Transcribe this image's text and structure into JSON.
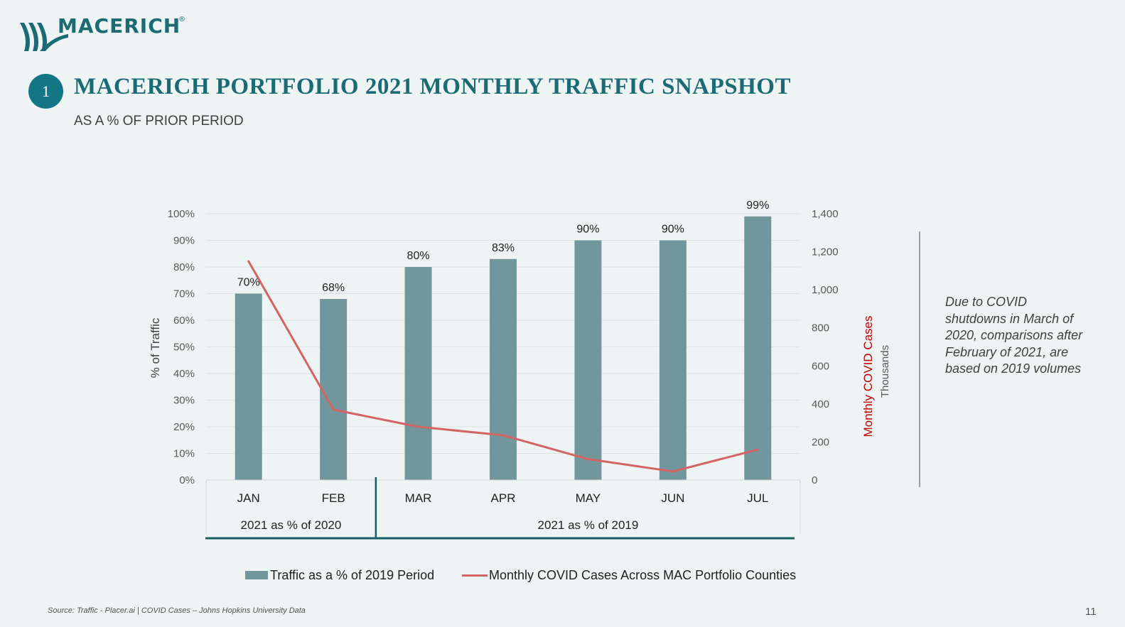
{
  "brand": {
    "name": "MACERICH",
    "registered": "®"
  },
  "header": {
    "section_number": "1",
    "title": "MACERICH PORTFOLIO 2021 MONTHLY TRAFFIC SNAPSHOT",
    "subtitle": "AS A % OF PRIOR PERIOD"
  },
  "chart_data": {
    "type": "bar",
    "categories": [
      "JAN",
      "FEB",
      "MAR",
      "APR",
      "MAY",
      "JUN",
      "JUL"
    ],
    "series": [
      {
        "name": "Traffic as a % of 2019 Period",
        "type": "bar",
        "axis": "left",
        "color": "#71979c",
        "values": [
          70,
          68,
          80,
          83,
          90,
          90,
          99
        ],
        "labels": [
          "70%",
          "68%",
          "80%",
          "83%",
          "90%",
          "90%",
          "99%"
        ]
      },
      {
        "name": "Monthly COVID Cases Across MAC Portfolio Counties",
        "type": "line",
        "axis": "right",
        "color": "#d46464",
        "values": [
          1150,
          370,
          280,
          235,
          110,
          45,
          160
        ]
      }
    ],
    "ylabel": "% of Traffic",
    "ylim": [
      0,
      100
    ],
    "yticks": [
      "0%",
      "10%",
      "20%",
      "30%",
      "40%",
      "50%",
      "60%",
      "70%",
      "80%",
      "90%",
      "100%"
    ],
    "y2label": "Monthly COVID Cases",
    "y2unit": "Thousands",
    "y2lim": [
      0,
      1400
    ],
    "y2ticks": [
      "0",
      "200",
      "400",
      "600",
      "800",
      "1,000",
      "1,200",
      "1,400"
    ],
    "y2label_color": "#c00000",
    "groups": [
      {
        "label": "2021 as % of 2020",
        "categories": [
          "JAN",
          "FEB"
        ]
      },
      {
        "label": "2021 as % of 2019",
        "categories": [
          "MAR",
          "APR",
          "MAY",
          "JUN",
          "JUL"
        ]
      }
    ],
    "grid": true,
    "legend_position": "bottom"
  },
  "note": "Due to COVID shutdowns in March of 2020, comparisons after February of 2021, are based on 2019 volumes",
  "source": "Source: Traffic - Placer.ai | COVID Cases – Johns Hopkins University Data",
  "page_number": "11",
  "colors": {
    "accent": "#1b6b74",
    "bar": "#71979c",
    "line": "#d46464",
    "axis_title_right": "#c00000"
  }
}
